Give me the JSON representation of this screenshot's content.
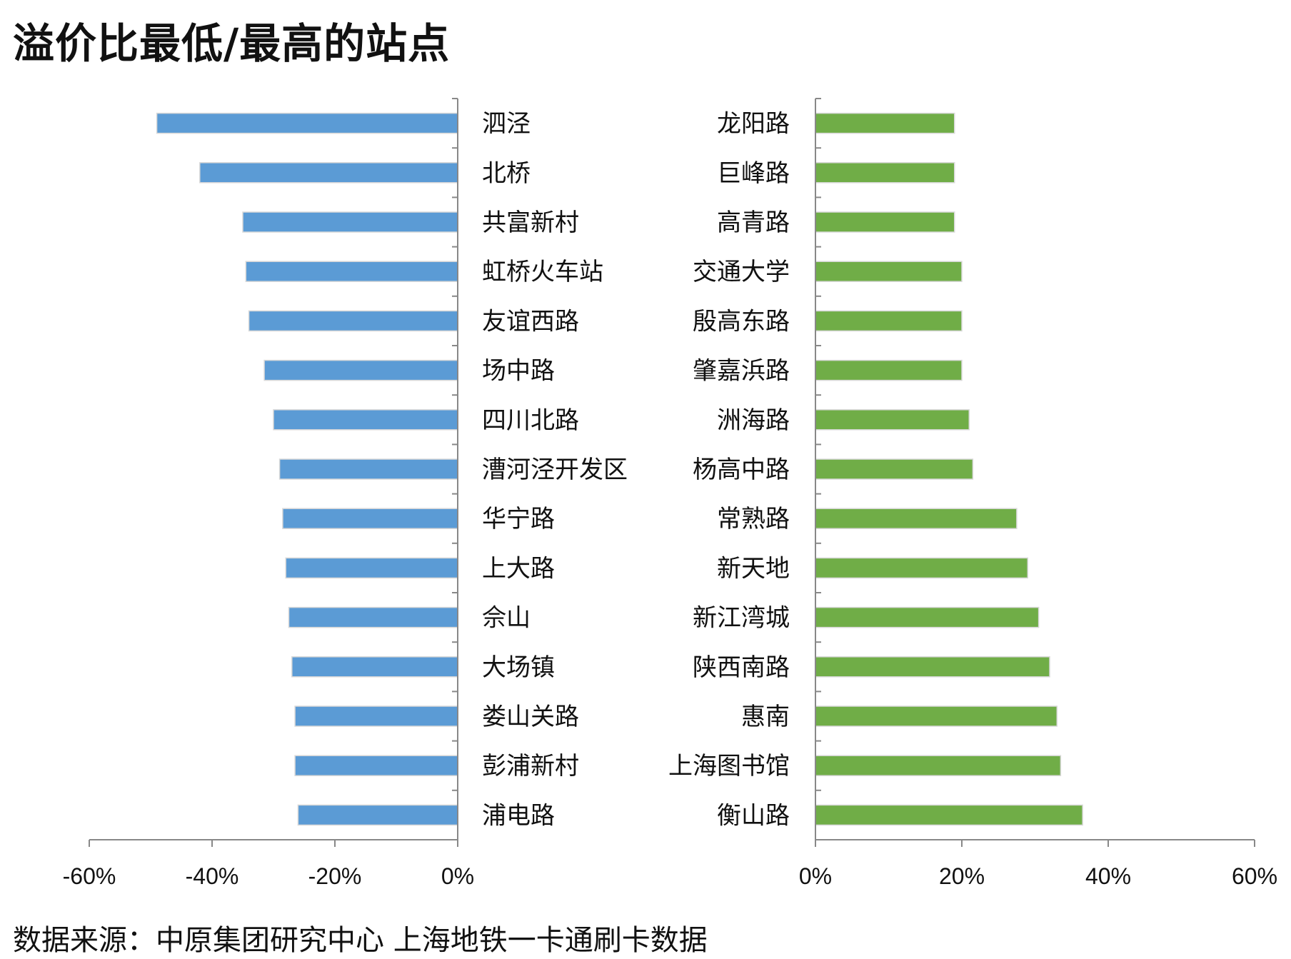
{
  "title": "溢价比最低/最高的站点",
  "source": "数据来源：中原集团研究中心 上海地铁一卡通刷卡数据",
  "colors": {
    "low": "#5b9bd5",
    "high": "#70ad47",
    "axis": "#888888"
  },
  "chart_data": [
    {
      "type": "bar",
      "orientation": "horizontal",
      "categories": [
        "泗泾",
        "北桥",
        "共富新村",
        "虹桥火车站",
        "友谊西路",
        "场中路",
        "四川北路",
        "漕河泾开发区",
        "华宁路",
        "上大路",
        "佘山",
        "大场镇",
        "娄山关路",
        "彭浦新村",
        "浦电路"
      ],
      "values": [
        -49,
        -42,
        -35,
        -34.5,
        -34,
        -31.5,
        -30,
        -29,
        -28.5,
        -28,
        -27.5,
        -27,
        -26.5,
        -26.5,
        -26
      ],
      "xlim": [
        -60,
        0
      ],
      "ticks": [
        "-60%",
        "-40%",
        "-20%",
        "0%"
      ],
      "tick_values": [
        -60,
        -40,
        -20,
        0
      ]
    },
    {
      "type": "bar",
      "orientation": "horizontal",
      "categories": [
        "龙阳路",
        "巨峰路",
        "高青路",
        "交通大学",
        "殷高东路",
        "肇嘉浜路",
        "洲海路",
        "杨高中路",
        "常熟路",
        "新天地",
        "新江湾城",
        "陕西南路",
        "惠南",
        "上海图书馆",
        "衡山路"
      ],
      "values": [
        19,
        19,
        19,
        20,
        20,
        20,
        21,
        21.5,
        27.5,
        29,
        30.5,
        32,
        33,
        33.5,
        36.5
      ],
      "xlim": [
        0,
        60
      ],
      "ticks": [
        "0%",
        "20%",
        "40%",
        "60%"
      ],
      "tick_values": [
        0,
        20,
        40,
        60
      ]
    }
  ]
}
